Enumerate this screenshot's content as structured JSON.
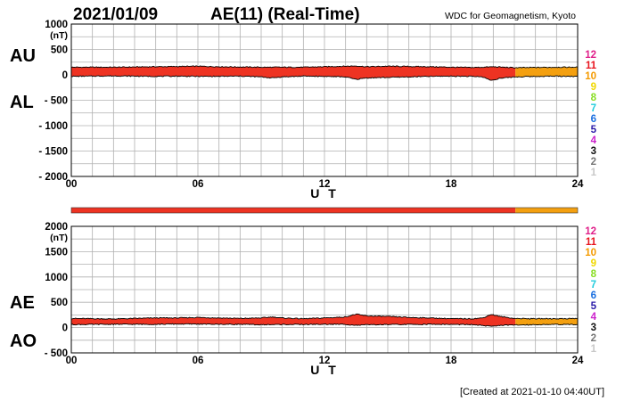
{
  "header": {
    "date": "2021/01/09",
    "title": "AE(11) (Real-Time)",
    "source": "WDC for Geomagnetism, Kyoto"
  },
  "footer": {
    "created": "[Created at 2021-01-10 04:40UT]"
  },
  "colors": {
    "grid": "#b0b0b0",
    "data": "#ee3322",
    "data_recent": "#f4a010",
    "trace": "#000000"
  },
  "station_count_scale": [
    {
      "label": "12",
      "color": "#e0208a"
    },
    {
      "label": "11",
      "color": "#e8141e"
    },
    {
      "label": "10",
      "color": "#f49a00"
    },
    {
      "label": "9",
      "color": "#f0d800"
    },
    {
      "label": "8",
      "color": "#88dd22"
    },
    {
      "label": "7",
      "color": "#22ccdd"
    },
    {
      "label": "6",
      "color": "#1a6fe0"
    },
    {
      "label": "5",
      "color": "#2a1aa8"
    },
    {
      "label": "4",
      "color": "#cc22cc"
    },
    {
      "label": "3",
      "color": "#111111"
    },
    {
      "label": "2",
      "color": "#777777"
    },
    {
      "label": "1",
      "color": "#c8c8c8"
    }
  ],
  "station_count_timeline": [
    {
      "from_ut": 0,
      "to_ut": 21.05,
      "count": "11"
    },
    {
      "from_ut": 21.05,
      "to_ut": 24,
      "count": "10"
    }
  ],
  "chart_data": [
    {
      "type": "line",
      "xlabel": "U T",
      "ylabel_unit": "(nT)",
      "xlim": [
        0,
        24
      ],
      "ylim": [
        -2000,
        1000
      ],
      "x_ticks": [
        "00",
        "06",
        "12",
        "18",
        "24"
      ],
      "y_ticks": [
        "1000",
        "500",
        "0",
        "- 500",
        "- 1000",
        "- 1500",
        "- 2000"
      ],
      "series_labels": [
        "AU",
        "AL"
      ],
      "series": [
        {
          "name": "AU",
          "x": [
            0,
            1,
            2,
            3,
            4,
            5,
            6,
            7,
            8,
            9,
            10,
            11,
            12,
            13,
            13.5,
            14,
            15,
            16,
            17,
            18,
            19,
            19.5,
            20,
            20.5,
            21,
            22,
            23,
            24
          ],
          "values": [
            150,
            150,
            150,
            155,
            160,
            165,
            170,
            160,
            155,
            150,
            150,
            150,
            160,
            170,
            175,
            160,
            170,
            165,
            160,
            150,
            145,
            150,
            160,
            150,
            140,
            145,
            150,
            150
          ]
        },
        {
          "name": "AL",
          "x": [
            0,
            1,
            2,
            3,
            4,
            5,
            6,
            7,
            8,
            9,
            9.5,
            10,
            11,
            12,
            13,
            13.5,
            14,
            15,
            16,
            17,
            18,
            19,
            19.5,
            19.9,
            20.3,
            21,
            22,
            23,
            24
          ],
          "values": [
            -30,
            -25,
            -20,
            -25,
            -30,
            -25,
            -30,
            -30,
            -25,
            -40,
            -60,
            -40,
            -25,
            -30,
            -40,
            -90,
            -60,
            -50,
            -40,
            -30,
            -25,
            -30,
            -40,
            -110,
            -70,
            -40,
            -30,
            -25,
            -30
          ]
        }
      ]
    },
    {
      "type": "line",
      "xlabel": "U T",
      "ylabel_unit": "(nT)",
      "xlim": [
        0,
        24
      ],
      "ylim": [
        -500,
        2000
      ],
      "x_ticks": [
        "00",
        "06",
        "12",
        "18",
        "24"
      ],
      "y_ticks": [
        "2000",
        "1500",
        "1000",
        "500",
        "0",
        "- 500"
      ],
      "series_labels": [
        "AE",
        "AO"
      ],
      "series": [
        {
          "name": "AE",
          "x": [
            0,
            1,
            2,
            3,
            4,
            5,
            6,
            7,
            8,
            9,
            9.5,
            10,
            11,
            12,
            13,
            13.5,
            14,
            15,
            16,
            17,
            18,
            19,
            19.5,
            19.9,
            20.3,
            21,
            22,
            23,
            24
          ],
          "values": [
            180,
            175,
            170,
            180,
            190,
            190,
            200,
            190,
            180,
            190,
            210,
            190,
            175,
            190,
            210,
            265,
            230,
            220,
            200,
            190,
            175,
            175,
            190,
            260,
            220,
            180,
            175,
            175,
            180
          ]
        },
        {
          "name": "AO",
          "x": [
            0,
            1,
            2,
            3,
            4,
            5,
            6,
            7,
            8,
            9,
            10,
            11,
            12,
            13,
            13.5,
            14,
            15,
            16,
            17,
            18,
            19,
            19.9,
            20.3,
            21,
            22,
            23,
            24
          ],
          "values": [
            60,
            62,
            65,
            65,
            65,
            70,
            70,
            65,
            65,
            55,
            62,
            62,
            65,
            65,
            45,
            55,
            60,
            62,
            65,
            62,
            58,
            25,
            45,
            50,
            58,
            62,
            60
          ]
        }
      ]
    }
  ]
}
